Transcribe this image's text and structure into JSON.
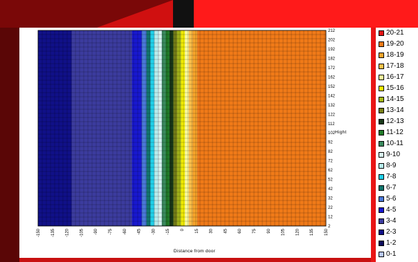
{
  "colors": {
    "20-21": "#e31414",
    "19-20": "#f07a18",
    "18-19": "#f6a42a",
    "17-18": "#ffc24a",
    "16-17": "#ffff9a",
    "15-16": "#f6f000",
    "14-15": "#a6b818",
    "13-14": "#788018",
    "12-13": "#183818",
    "11-12": "#207a28",
    "10-11": "#3a8a5e",
    "9-10": "#d8f4f0",
    "8-9": "#b6ecec",
    "7-8": "#20d0e8",
    "6-7": "#12746c",
    "5-6": "#4a78d8",
    "4-5": "#1818d0",
    "3-4": "#3c3c9e",
    "2-3": "#101088",
    "1-2": "#0c0c5c",
    "0-1": "#b8c8ff"
  },
  "chart_data": {
    "type": "heatmap",
    "xlabel": "Distance from door",
    "ylabel": "Hight",
    "x_ticks": [
      -150,
      -135,
      -120,
      -105,
      -90,
      -75,
      -60,
      -45,
      -30,
      -15,
      0,
      15,
      30,
      45,
      60,
      75,
      90,
      105,
      120,
      135,
      150
    ],
    "y_ticks": [
      2,
      12,
      22,
      32,
      42,
      52,
      62,
      72,
      82,
      92,
      102,
      112,
      122,
      132,
      142,
      152,
      162,
      172,
      182,
      192,
      202,
      212
    ],
    "xlim": [
      -150,
      150
    ],
    "ylim": [
      2,
      212
    ],
    "grid": true,
    "legend_position": "right",
    "legend": [
      "20-21",
      "19-20",
      "18-19",
      "17-18",
      "16-17",
      "15-16",
      "14-15",
      "13-14",
      "12-13",
      "11-12",
      "10-11",
      "9-10",
      "8-9",
      "7-8",
      "6-7",
      "5-6",
      "4-5",
      "3-4",
      "2-3",
      "1-2",
      "0-1"
    ],
    "transition_bands": [
      {
        "range": "2-3",
        "x": -115
      },
      {
        "range": "3-4",
        "x": -52
      },
      {
        "range": "4-5",
        "x": -42
      },
      {
        "range": "5-6",
        "x": -37
      },
      {
        "range": "6-7",
        "x": -33
      },
      {
        "range": "7-8",
        "x": -29
      },
      {
        "range": "8-9",
        "x": -25
      },
      {
        "range": "9-10",
        "x": -21
      },
      {
        "range": "10-11",
        "x": -17
      },
      {
        "range": "11-12",
        "x": -13
      },
      {
        "range": "12-13",
        "x": -9
      },
      {
        "range": "13-14",
        "x": -5
      },
      {
        "range": "14-15",
        "x": -1
      },
      {
        "range": "15-16",
        "x": 3
      },
      {
        "range": "16-17",
        "x": 7
      },
      {
        "range": "17-18",
        "x": 11
      },
      {
        "range": "18-19",
        "x": 16
      },
      {
        "range": "19-20",
        "x": 150
      }
    ]
  }
}
